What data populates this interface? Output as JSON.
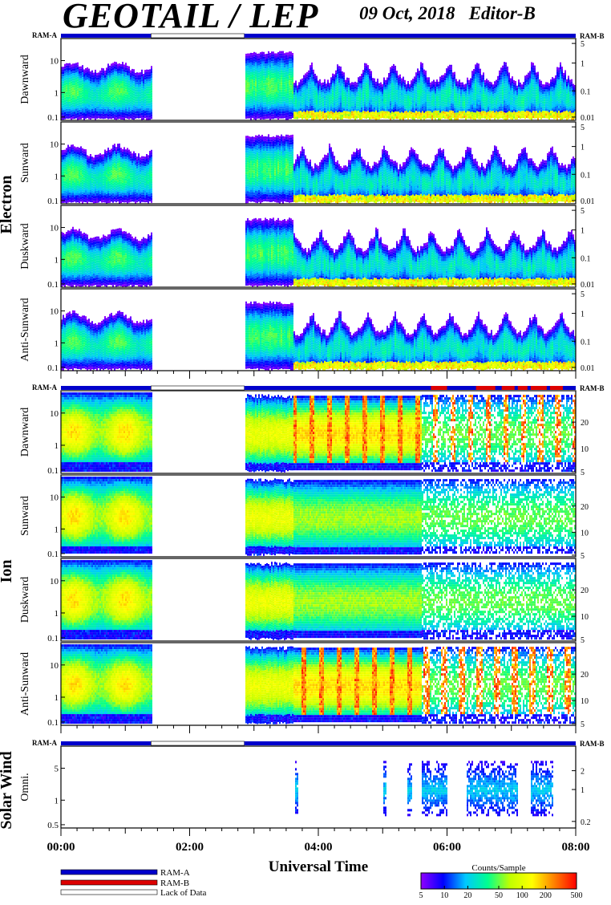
{
  "header": {
    "title": "GEOTAIL / LEP",
    "date": "09 Oct, 2018",
    "editor": "Editor-B"
  },
  "x_axis": {
    "label": "Universal Time",
    "ticks": [
      "00:00",
      "02:00",
      "04:00",
      "06:00",
      "08:00"
    ]
  },
  "ram_labels": {
    "left": "RAM-A",
    "right": "RAM-B"
  },
  "groups": [
    {
      "name": "Electron",
      "panels": [
        {
          "label": "Dawnward",
          "left_ticks": [
            "10",
            "1",
            "0.1"
          ],
          "right_ticks": [
            "5",
            "1",
            "0.1",
            "0.01"
          ]
        },
        {
          "label": "Sunward",
          "left_ticks": [
            "10",
            "1",
            "0.1"
          ],
          "right_ticks": [
            "5",
            "1",
            "0.1",
            "0.01"
          ]
        },
        {
          "label": "Duskward",
          "left_ticks": [
            "10",
            "1",
            "0.1"
          ],
          "right_ticks": [
            "5",
            "1",
            "0.1",
            "0.01"
          ]
        },
        {
          "label": "Anti-Sunward",
          "left_ticks": [
            "10",
            "1",
            "0.1"
          ],
          "right_ticks": [
            "5",
            "1",
            "0.1",
            "0.01"
          ]
        }
      ]
    },
    {
      "name": "Ion",
      "panels": [
        {
          "label": "Dawnward",
          "left_ticks": [
            "10",
            "1",
            "0.1"
          ],
          "right_ticks": [
            "20",
            "10",
            "5"
          ]
        },
        {
          "label": "Sunward",
          "left_ticks": [
            "10",
            "1",
            "0.1"
          ],
          "right_ticks": [
            "20",
            "10",
            "5"
          ]
        },
        {
          "label": "Duskward",
          "left_ticks": [
            "10",
            "1",
            "0.1"
          ],
          "right_ticks": [
            "20",
            "10",
            "5"
          ]
        },
        {
          "label": "Anti-Sunward",
          "left_ticks": [
            "10",
            "1",
            "0.1"
          ],
          "right_ticks": [
            "20",
            "10",
            "5"
          ]
        }
      ]
    },
    {
      "name": "Solar Wind",
      "panels": [
        {
          "label": "Omni.",
          "left_ticks": [
            "5",
            "1",
            "0.5"
          ],
          "right_ticks": [
            "2",
            "1",
            "0.2"
          ]
        }
      ]
    }
  ],
  "legend": {
    "items": [
      {
        "label": "RAM-A",
        "color": "#0000cc"
      },
      {
        "label": "RAM-B",
        "color": "#dd0000"
      },
      {
        "label": "Lack of Data",
        "color": "#ffffff"
      }
    ]
  },
  "colorbar": {
    "title": "Counts/Sample",
    "ticks": [
      "5",
      "10",
      "20",
      "50",
      "100",
      "200",
      "500"
    ]
  },
  "chart_data": {
    "type": "heatmap",
    "x_range_hours": [
      0,
      8
    ],
    "data_gap_hours": [
      1.4,
      2.85
    ],
    "panel_count": 9,
    "colorscale": [
      "#9000ff",
      "#0000ff",
      "#00c8ff",
      "#00ff90",
      "#c0ff00",
      "#ffff00",
      "#ff8000",
      "#ff0000"
    ],
    "colorbar_range": [
      5,
      500
    ],
    "colorbar_scale": "log"
  }
}
